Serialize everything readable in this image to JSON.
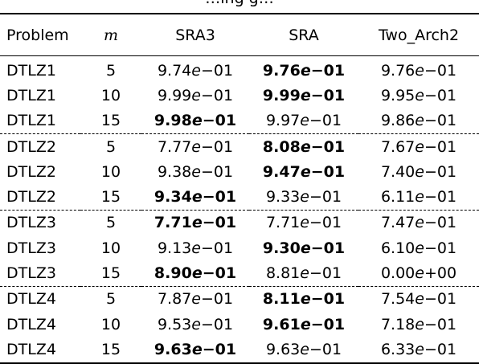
{
  "caption_fragment": "…ing g…",
  "table": {
    "headers": {
      "problem": "Problem",
      "m": "m",
      "sra3": "SRA3",
      "sra": "SRA",
      "two_arch2": "Two_Arch2"
    },
    "rows": [
      {
        "problem": "DTLZ1",
        "m": "5",
        "sra3": {
          "mant": "9.74",
          "exp": "−01",
          "best": false
        },
        "sra": {
          "mant": "9.76",
          "exp": "−01",
          "best": true
        },
        "two_arch2": {
          "mant": "9.76",
          "exp": "−01",
          "best": false
        }
      },
      {
        "problem": "DTLZ1",
        "m": "10",
        "sra3": {
          "mant": "9.99",
          "exp": "−01",
          "best": false
        },
        "sra": {
          "mant": "9.99",
          "exp": "−01",
          "best": true
        },
        "two_arch2": {
          "mant": "9.95",
          "exp": "−01",
          "best": false
        }
      },
      {
        "problem": "DTLZ1",
        "m": "15",
        "sra3": {
          "mant": "9.98",
          "exp": "−01",
          "best": true
        },
        "sra": {
          "mant": "9.97",
          "exp": "−01",
          "best": false
        },
        "two_arch2": {
          "mant": "9.86",
          "exp": "−01",
          "best": false
        }
      },
      {
        "problem": "DTLZ2",
        "m": "5",
        "sra3": {
          "mant": "7.77",
          "exp": "−01",
          "best": false
        },
        "sra": {
          "mant": "8.08",
          "exp": "−01",
          "best": true
        },
        "two_arch2": {
          "mant": "7.67",
          "exp": "−01",
          "best": false
        }
      },
      {
        "problem": "DTLZ2",
        "m": "10",
        "sra3": {
          "mant": "9.38",
          "exp": "−01",
          "best": false
        },
        "sra": {
          "mant": "9.47",
          "exp": "−01",
          "best": true
        },
        "two_arch2": {
          "mant": "7.40",
          "exp": "−01",
          "best": false
        }
      },
      {
        "problem": "DTLZ2",
        "m": "15",
        "sra3": {
          "mant": "9.34",
          "exp": "−01",
          "best": true
        },
        "sra": {
          "mant": "9.33",
          "exp": "−01",
          "best": false
        },
        "two_arch2": {
          "mant": "6.11",
          "exp": "−01",
          "best": false
        }
      },
      {
        "problem": "DTLZ3",
        "m": "5",
        "sra3": {
          "mant": "7.71",
          "exp": "−01",
          "best": true
        },
        "sra": {
          "mant": "7.71",
          "exp": "−01",
          "best": false
        },
        "two_arch2": {
          "mant": "7.47",
          "exp": "−01",
          "best": false
        }
      },
      {
        "problem": "DTLZ3",
        "m": "10",
        "sra3": {
          "mant": "9.13",
          "exp": "−01",
          "best": false
        },
        "sra": {
          "mant": "9.30",
          "exp": "−01",
          "best": true
        },
        "two_arch2": {
          "mant": "6.10",
          "exp": "−01",
          "best": false
        }
      },
      {
        "problem": "DTLZ3",
        "m": "15",
        "sra3": {
          "mant": "8.90",
          "exp": "−01",
          "best": true
        },
        "sra": {
          "mant": "8.81",
          "exp": "−01",
          "best": false
        },
        "two_arch2": {
          "mant": "0.00",
          "exp": "+00",
          "best": false
        }
      },
      {
        "problem": "DTLZ4",
        "m": "5",
        "sra3": {
          "mant": "7.87",
          "exp": "−01",
          "best": false
        },
        "sra": {
          "mant": "8.11",
          "exp": "−01",
          "best": true
        },
        "two_arch2": {
          "mant": "7.54",
          "exp": "−01",
          "best": false
        }
      },
      {
        "problem": "DTLZ4",
        "m": "10",
        "sra3": {
          "mant": "9.53",
          "exp": "−01",
          "best": false
        },
        "sra": {
          "mant": "9.61",
          "exp": "−01",
          "best": true
        },
        "two_arch2": {
          "mant": "7.18",
          "exp": "−01",
          "best": false
        }
      },
      {
        "problem": "DTLZ4",
        "m": "15",
        "sra3": {
          "mant": "9.63",
          "exp": "−01",
          "best": true
        },
        "sra": {
          "mant": "9.63",
          "exp": "−01",
          "best": false
        },
        "two_arch2": {
          "mant": "6.33",
          "exp": "−01",
          "best": false
        }
      }
    ]
  }
}
